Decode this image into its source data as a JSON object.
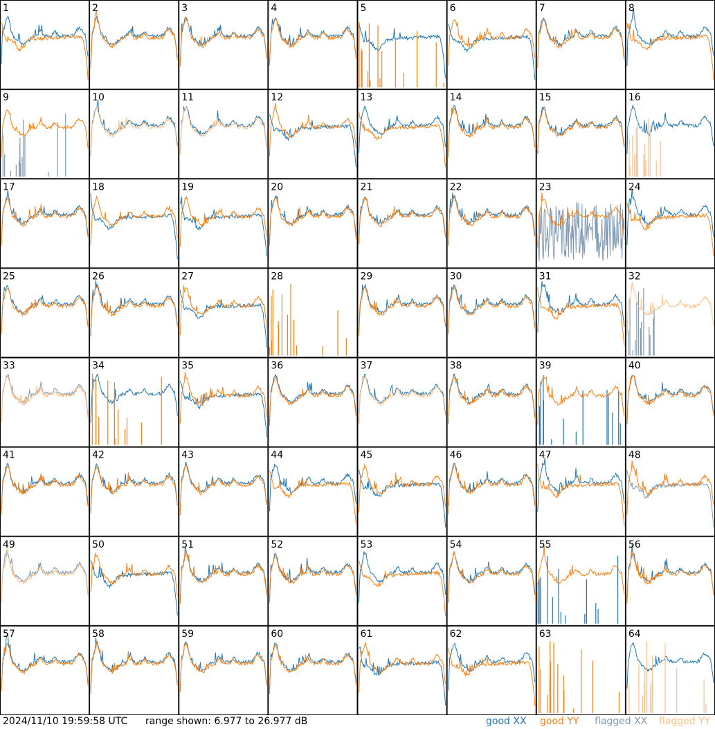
{
  "footer": {
    "timestamp": "2024/11/10 19:59:58 UTC",
    "range_text": "range shown: 6.977 to 26.977 dB"
  },
  "legend": [
    {
      "label": "good XX",
      "color": "#1f77b4"
    },
    {
      "label": "good YY",
      "color": "#ff7f0e"
    },
    {
      "label": "flagged XX",
      "color": "#7f9ab5"
    },
    {
      "label": "flagged YY",
      "color": "#ffbf86"
    }
  ],
  "chart_data": {
    "type": "line",
    "grid_rows": 8,
    "grid_cols": 8,
    "y_range_db": [
      6.977,
      26.977
    ],
    "series_colors": {
      "good_XX": "#1f77b4",
      "good_YY": "#ff7f0e",
      "flagged_XX": "#7f9ab5",
      "flagged_YY": "#ffbf86"
    },
    "panels": [
      {
        "id": "1",
        "xx": "normal",
        "yy": "falloff"
      },
      {
        "id": "2",
        "xx": "normal",
        "yy": "normal"
      },
      {
        "id": "3",
        "xx": "normal",
        "yy": "normal"
      },
      {
        "id": "4",
        "xx": "normal",
        "yy": "normal"
      },
      {
        "id": "5",
        "xx": "falloff",
        "yy": "spikes"
      },
      {
        "id": "6",
        "xx": "falloff",
        "yy": "normal"
      },
      {
        "id": "7",
        "xx": "normal",
        "yy": "normal"
      },
      {
        "id": "8",
        "xx": "normal",
        "yy": "falloff"
      },
      {
        "id": "9",
        "xx": "spikes",
        "yy": "normal",
        "xx_flagged": true
      },
      {
        "id": "10",
        "xx": "normal",
        "yy": "normal",
        "yy_flagged": true
      },
      {
        "id": "11",
        "xx": "normal",
        "yy": "normal",
        "yy_flagged": true
      },
      {
        "id": "12",
        "xx": "falloff",
        "yy": "normal"
      },
      {
        "id": "13",
        "xx": "normal",
        "yy": "falloff"
      },
      {
        "id": "14",
        "xx": "normal",
        "yy": "normal"
      },
      {
        "id": "15",
        "xx": "normal",
        "yy": "normal"
      },
      {
        "id": "16",
        "xx": "normal",
        "yy": "spikes",
        "yy_flagged": true
      },
      {
        "id": "17",
        "xx": "normal",
        "yy": "normal"
      },
      {
        "id": "18",
        "xx": "falloff",
        "yy": "normal"
      },
      {
        "id": "19",
        "xx": "falloff",
        "yy": "normal"
      },
      {
        "id": "20",
        "xx": "normal",
        "yy": "normal"
      },
      {
        "id": "21",
        "xx": "normal",
        "yy": "normal"
      },
      {
        "id": "22",
        "xx": "normal",
        "yy": "normal"
      },
      {
        "id": "23",
        "xx": "noisy",
        "yy": "normal",
        "xx_flagged": true
      },
      {
        "id": "24",
        "xx": "normal",
        "yy": "falloff"
      },
      {
        "id": "25",
        "xx": "normal",
        "yy": "normal"
      },
      {
        "id": "26",
        "xx": "normal",
        "yy": "normal"
      },
      {
        "id": "27",
        "xx": "falloff",
        "yy": "normal"
      },
      {
        "id": "28",
        "xx": "none",
        "yy": "spikes"
      },
      {
        "id": "29",
        "xx": "normal",
        "yy": "normal"
      },
      {
        "id": "30",
        "xx": "normal",
        "yy": "normal"
      },
      {
        "id": "31",
        "xx": "normal",
        "yy": "falloff"
      },
      {
        "id": "32",
        "xx": "spikes",
        "yy": "normal",
        "xx_flagged": true,
        "yy_flagged": true
      },
      {
        "id": "33",
        "xx": "normal",
        "yy": "normal",
        "xx_flagged": true,
        "yy_flagged": true
      },
      {
        "id": "34",
        "xx": "normal",
        "yy": "spikes"
      },
      {
        "id": "35",
        "xx": "falloff",
        "yy": "normal"
      },
      {
        "id": "36",
        "xx": "normal",
        "yy": "normal"
      },
      {
        "id": "37",
        "xx": "normal",
        "yy": "normal",
        "yy_flagged": true
      },
      {
        "id": "38",
        "xx": "normal",
        "yy": "normal"
      },
      {
        "id": "39",
        "xx": "spikes",
        "yy": "normal"
      },
      {
        "id": "40",
        "xx": "normal",
        "yy": "normal"
      },
      {
        "id": "41",
        "xx": "normal",
        "yy": "normal"
      },
      {
        "id": "42",
        "xx": "normal",
        "yy": "normal"
      },
      {
        "id": "43",
        "xx": "normal",
        "yy": "normal"
      },
      {
        "id": "44",
        "xx": "normal",
        "yy": "falloff"
      },
      {
        "id": "45",
        "xx": "falloff",
        "yy": "normal"
      },
      {
        "id": "46",
        "xx": "normal",
        "yy": "normal"
      },
      {
        "id": "47",
        "xx": "normal",
        "yy": "falloff"
      },
      {
        "id": "48",
        "xx": "falloff",
        "yy": "normal",
        "xx_flagged": true
      },
      {
        "id": "49",
        "xx": "normal",
        "yy": "normal",
        "xx_flagged": true,
        "yy_flagged": true
      },
      {
        "id": "50",
        "xx": "falloff",
        "yy": "normal"
      },
      {
        "id": "51",
        "xx": "normal",
        "yy": "normal"
      },
      {
        "id": "52",
        "xx": "normal",
        "yy": "normal"
      },
      {
        "id": "53",
        "xx": "normal",
        "yy": "falloff"
      },
      {
        "id": "54",
        "xx": "normal",
        "yy": "normal"
      },
      {
        "id": "55",
        "xx": "spikes",
        "yy": "normal"
      },
      {
        "id": "56",
        "xx": "normal",
        "yy": "normal"
      },
      {
        "id": "57",
        "xx": "normal",
        "yy": "normal"
      },
      {
        "id": "58",
        "xx": "normal",
        "yy": "normal"
      },
      {
        "id": "59",
        "xx": "normal",
        "yy": "normal"
      },
      {
        "id": "60",
        "xx": "normal",
        "yy": "normal"
      },
      {
        "id": "61",
        "xx": "falloff",
        "yy": "normal"
      },
      {
        "id": "62",
        "xx": "normal",
        "yy": "falloff"
      },
      {
        "id": "63",
        "xx": "none",
        "yy": "spikes"
      },
      {
        "id": "64",
        "xx": "normal",
        "yy": "spikes",
        "yy_flagged": true
      }
    ]
  }
}
